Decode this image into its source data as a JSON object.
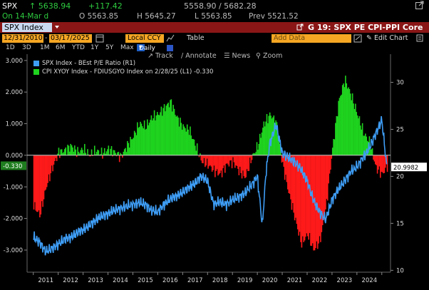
{
  "ticker": {
    "symbol": "SPX",
    "last": "↑ 5638.94",
    "change": "+117.42",
    "high_low": "5558.90 / 5682.28",
    "on_date": "On 14-Mar d",
    "open": "O 5563.85",
    "high": "H 5645.27",
    "low": "L 5563.85",
    "prev": "Prev 5521.52"
  },
  "title_bar": {
    "input_value": "SPX Index",
    "tab_label": "G 19: SPX PE CPI-PPI Core"
  },
  "date_bar": {
    "start": "12/31/2010",
    "end": "03/17/2025",
    "currency": "Local CCY",
    "table_label": "Table",
    "add_data": "Add Data",
    "edit_chart": "Edit Chart"
  },
  "toolbar": {
    "periods": [
      "1D",
      "3D",
      "1M",
      "6M",
      "YTD",
      "1Y",
      "5Y",
      "Max"
    ],
    "frequency": "Daily",
    "track": "Track",
    "annotate": "Annotate",
    "news": "News",
    "zoom": "Zoom"
  },
  "colors": {
    "title_bar": "#8a1616",
    "orange_input": "#f5a623",
    "pe_series": "#3e9df5",
    "cpi_positive": "#1fd31f",
    "cpi_negative": "#ff1a1a",
    "label_bg": "#1f7d1f"
  },
  "chart_data": {
    "type": "area",
    "legend": [
      {
        "label": "SPX Index - BEst P/E Ratio (R1)",
        "color": "#3e9df5"
      },
      {
        "label": "CPI XYOY Index - FDIUSGYO Index on 2/28/25 (L1) -0.330",
        "color": "#1fd31f"
      }
    ],
    "x_tick_labels": [
      "2011",
      "2012",
      "2013",
      "2014",
      "2015",
      "2016",
      "2017",
      "2018",
      "2019",
      "2020",
      "2021",
      "2022",
      "2023",
      "2024"
    ],
    "left_axis": {
      "ticks": [
        "3.000",
        "2.000",
        "1.000",
        "0.000",
        "-1.000",
        "-2.000",
        "-3.000"
      ],
      "range": [
        -3.7,
        3.2
      ]
    },
    "right_axis": {
      "ticks": [
        "30",
        "25",
        "20",
        "15",
        "10"
      ],
      "range": [
        9.8,
        33.0
      ]
    },
    "current_left_label": "-0.330",
    "current_right_label": "20.9982",
    "series": [
      {
        "name": "CPI XYOY Index - FDIUSGYO Index",
        "axis": "left",
        "x": [
          2011.0,
          2011.25,
          2011.5,
          2011.75,
          2012.0,
          2012.25,
          2012.5,
          2012.75,
          2013.0,
          2013.25,
          2013.5,
          2013.75,
          2014.0,
          2014.25,
          2014.5,
          2014.75,
          2015.0,
          2015.25,
          2015.5,
          2015.75,
          2016.0,
          2016.25,
          2016.5,
          2016.75,
          2017.0,
          2017.25,
          2017.5,
          2017.75,
          2018.0,
          2018.25,
          2018.5,
          2018.75,
          2019.0,
          2019.25,
          2019.5,
          2019.75,
          2020.0,
          2020.25,
          2020.5,
          2020.75,
          2021.0,
          2021.25,
          2021.5,
          2021.75,
          2022.0,
          2022.25,
          2022.5,
          2022.75,
          2023.0,
          2023.25,
          2023.5,
          2023.75,
          2024.0,
          2024.25,
          2024.5,
          2024.75,
          2025.0,
          2025.2
        ],
        "values": [
          -1.6,
          -1.9,
          -1.0,
          -0.4,
          0.1,
          0.15,
          0.3,
          0.1,
          0.2,
          0.0,
          0.15,
          0.05,
          0.2,
          0.1,
          -0.05,
          0.3,
          0.6,
          1.0,
          0.9,
          1.2,
          1.3,
          1.5,
          1.7,
          1.2,
          0.9,
          0.8,
          0.3,
          -0.2,
          -0.3,
          -0.5,
          -0.6,
          -0.3,
          -0.2,
          -0.5,
          -0.7,
          -0.1,
          0.3,
          1.0,
          1.3,
          1.0,
          -0.3,
          -1.2,
          -2.0,
          -2.8,
          -2.5,
          -3.0,
          -2.7,
          -1.6,
          0.2,
          1.7,
          2.4,
          1.9,
          1.3,
          0.7,
          0.4,
          -0.4,
          -0.6,
          -0.33
        ]
      },
      {
        "name": "SPX Index - BEst P/E Ratio",
        "axis": "right",
        "x": [
          2011.0,
          2011.25,
          2011.5,
          2011.75,
          2012.0,
          2012.25,
          2012.5,
          2012.75,
          2013.0,
          2013.25,
          2013.5,
          2013.75,
          2014.0,
          2014.25,
          2014.5,
          2014.75,
          2015.0,
          2015.25,
          2015.5,
          2015.75,
          2016.0,
          2016.25,
          2016.5,
          2016.75,
          2017.0,
          2017.25,
          2017.5,
          2017.75,
          2018.0,
          2018.25,
          2018.5,
          2018.75,
          2019.0,
          2019.25,
          2019.5,
          2019.75,
          2020.0,
          2020.2,
          2020.35,
          2020.5,
          2020.75,
          2021.0,
          2021.25,
          2021.5,
          2021.75,
          2022.0,
          2022.25,
          2022.5,
          2022.75,
          2023.0,
          2023.25,
          2023.5,
          2023.75,
          2024.0,
          2024.25,
          2024.5,
          2024.75,
          2025.0,
          2025.2
        ],
        "values": [
          13.5,
          13.0,
          12.0,
          12.3,
          12.8,
          13.3,
          13.5,
          14.0,
          14.3,
          14.8,
          15.3,
          15.8,
          16.0,
          16.4,
          16.6,
          16.8,
          17.0,
          17.2,
          17.0,
          16.4,
          16.2,
          17.0,
          17.6,
          17.9,
          18.3,
          18.8,
          19.3,
          20.0,
          19.5,
          17.0,
          17.3,
          17.0,
          17.5,
          17.8,
          18.2,
          19.0,
          20.0,
          14.8,
          20.5,
          23.5,
          25.5,
          22.5,
          22.0,
          21.5,
          20.8,
          19.5,
          17.5,
          16.2,
          15.4,
          17.5,
          18.6,
          19.5,
          20.5,
          21.0,
          22.0,
          23.0,
          24.5,
          26.0,
          20.9982
        ]
      }
    ]
  }
}
